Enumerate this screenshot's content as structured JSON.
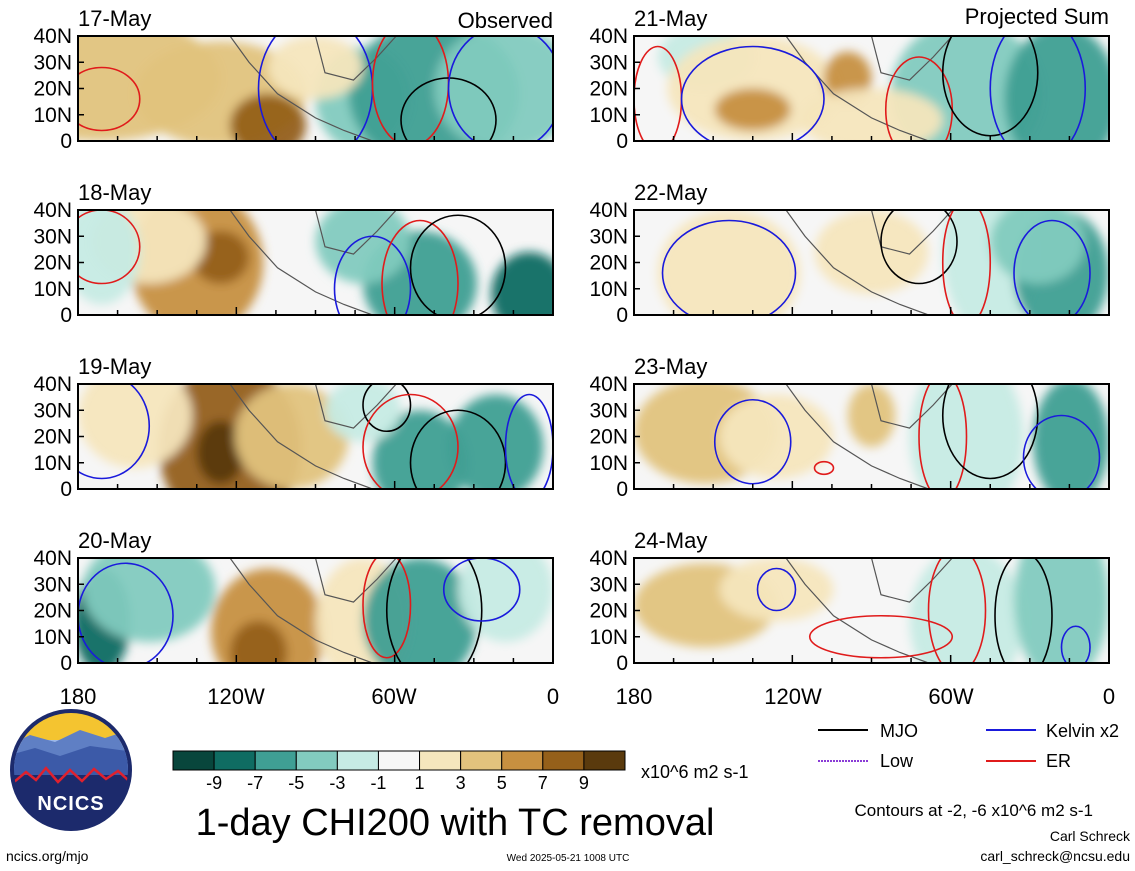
{
  "chart_data": {
    "type": "heatmap",
    "title": "1-day CHI200 with TC removal",
    "units": "x10^6 m2 s-1",
    "column_titles": [
      "Observed",
      "Projected Sum"
    ],
    "x_ticks": [
      "180",
      "120W",
      "60W",
      "0"
    ],
    "y_ticks": [
      "40N",
      "30N",
      "20N",
      "10N",
      "0"
    ],
    "x_range_lon": [
      -180,
      0
    ],
    "y_range_lat": [
      0,
      40
    ],
    "panels": [
      {
        "date": "17-May",
        "group": "Observed"
      },
      {
        "date": "18-May",
        "group": "Observed"
      },
      {
        "date": "19-May",
        "group": "Observed"
      },
      {
        "date": "20-May",
        "group": "Observed"
      },
      {
        "date": "21-May",
        "group": "Projected Sum"
      },
      {
        "date": "22-May",
        "group": "Projected Sum"
      },
      {
        "date": "23-May",
        "group": "Projected Sum"
      },
      {
        "date": "24-May",
        "group": "Projected Sum"
      }
    ],
    "colorbar": {
      "labels": [
        "-9",
        "-7",
        "-5",
        "-3",
        "-1",
        "1",
        "3",
        "5",
        "7",
        "9"
      ],
      "colors": [
        "#08463c",
        "#0f6c62",
        "#3f9f94",
        "#82cbbf",
        "#c6ebe4",
        "#f6f6f6",
        "#f5e6bd",
        "#e2c37d",
        "#c79040",
        "#95601a",
        "#5a3a0d"
      ]
    },
    "contour_legend": [
      {
        "label": "MJO",
        "color": "#000000"
      },
      {
        "label": "Kelvin x2",
        "color": "#1a1adc"
      },
      {
        "label": "Low",
        "color": "#8a3cd6"
      },
      {
        "label": "ER",
        "color": "#e01b1b"
      }
    ],
    "contour_note": "Contours at -2, -6 x10^6 m2 s-1"
  },
  "brand": {
    "logo_text": "NCICS",
    "url": "ncics.org/mjo"
  },
  "timestamp": "Wed 2025-05-21 1008 UTC",
  "author": {
    "name": "Carl Schreck",
    "email": "carl_schreck@ncsu.edu"
  }
}
